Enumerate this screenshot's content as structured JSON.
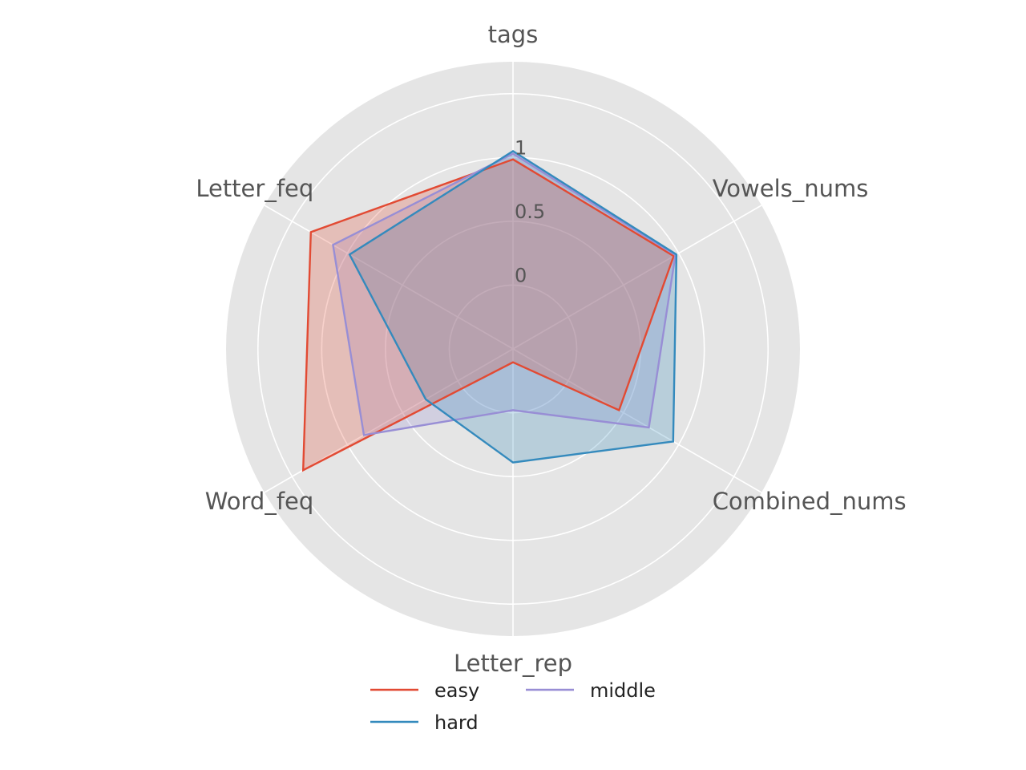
{
  "chart_data": {
    "type": "radar",
    "axes": [
      "tags",
      "Vowels_nums",
      "Combined_nums",
      "Letter_rep",
      "Word_feq",
      "Letter_feq"
    ],
    "radial_ticks": [
      {
        "value": 0,
        "label": "0"
      },
      {
        "value": 0.5,
        "label": "0.5"
      },
      {
        "value": 1,
        "label": "1"
      }
    ],
    "rlim": [
      -0.5,
      1.75
    ],
    "series": [
      {
        "name": "easy",
        "color": "#E24A33",
        "values": [
          0.985,
          0.955,
          0.46,
          -0.395,
          1.4,
          1.33
        ]
      },
      {
        "name": "middle",
        "color": "#988ED5",
        "values": [
          1.03,
          0.97,
          0.73,
          -0.02,
          0.85,
          1.13
        ]
      },
      {
        "name": "hard",
        "color": "#348ABD",
        "values": [
          1.05,
          0.98,
          0.95,
          0.39,
          0.29,
          0.98
        ]
      }
    ],
    "fill_order": [
      "middle",
      "hard",
      "easy"
    ],
    "background": "#E5E5E5",
    "grid_color": "#FFFFFF",
    "legend": {
      "placement": "bottom-center",
      "columns": 2,
      "order": [
        "easy",
        "hard",
        "middle"
      ]
    }
  }
}
